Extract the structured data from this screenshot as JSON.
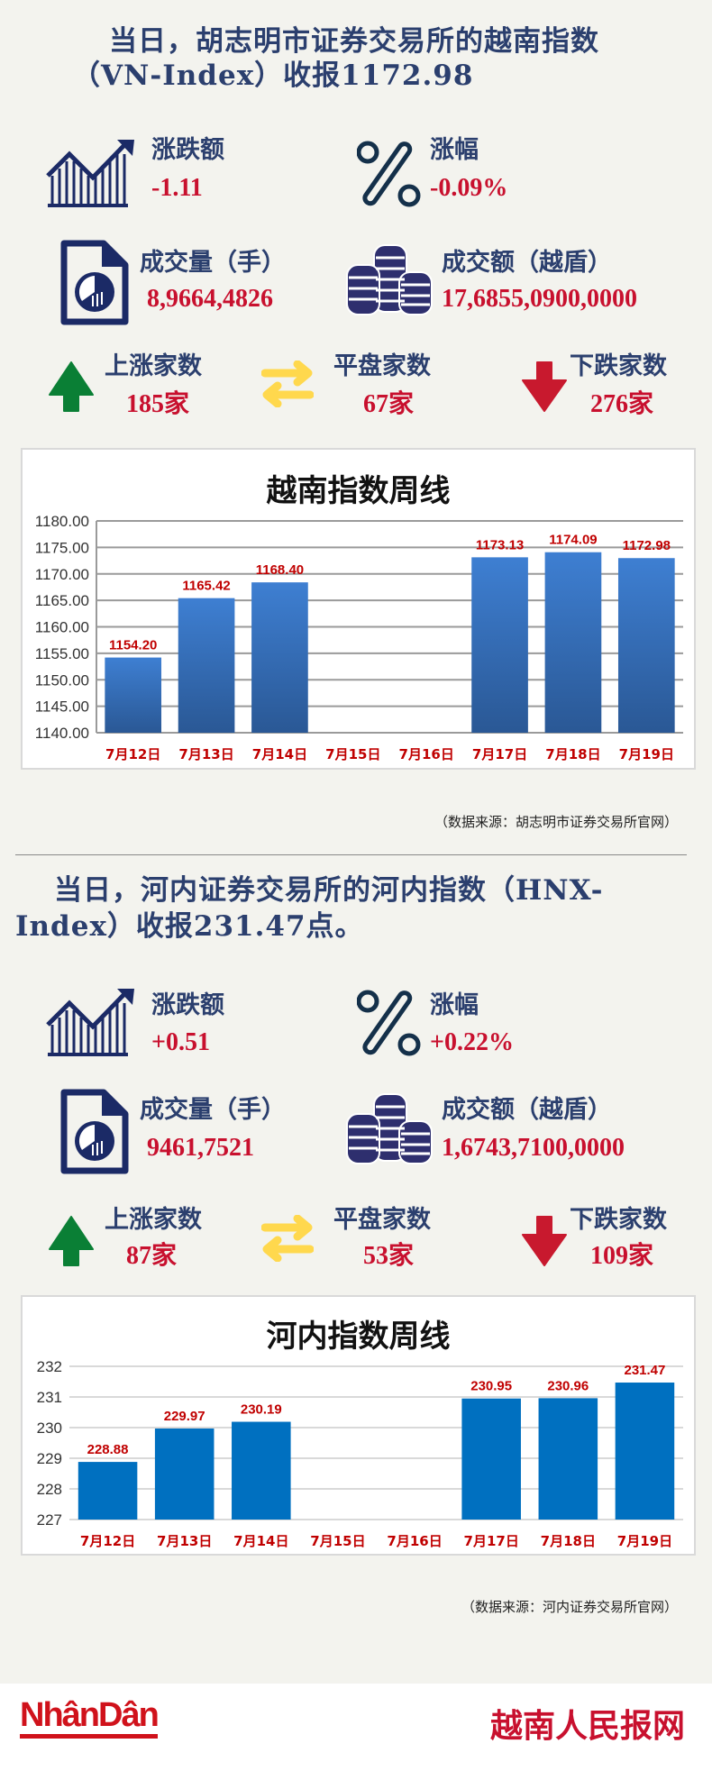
{
  "hose": {
    "title_line1": "当日，胡志明市证券交易所的越南指数",
    "title_line2": "（VN-Index）收报1172.98",
    "change_label": "涨跌额",
    "change_value": "-1.11",
    "pct_label": "涨幅",
    "pct_value": "-0.09%",
    "volume_label": "成交量（手）",
    "volume_value": "8,9664,4826",
    "turnover_label": "成交额（越盾）",
    "turnover_value": "17,6855,0900,0000",
    "up_label": "上涨家数",
    "up_value": "185家",
    "flat_label": "平盘家数",
    "flat_value": "67家",
    "down_label": "下跌家数",
    "down_value": "276家",
    "source": "（数据来源：胡志明市证券交易所官网）"
  },
  "hnx": {
    "title_line1": "当日，河内证券交易所的河内指数（HNX-",
    "title_line2": "Index）收报231.47点。",
    "change_label": "涨跌额",
    "change_value": "+0.51",
    "pct_label": "涨幅",
    "pct_value": "+0.22%",
    "volume_label": "成交量（手）",
    "volume_value": "9461,7521",
    "turnover_label": "成交额（越盾）",
    "turnover_value": "1,6743,7100,0000",
    "up_label": "上涨家数",
    "up_value": "87家",
    "flat_label": "平盘家数",
    "flat_value": "53家",
    "down_label": "下跌家数",
    "down_value": "109家",
    "source": "（数据来源：河内证券交易所官网）"
  },
  "colors": {
    "navy": "#2b3f6e",
    "red": "#c8102e",
    "up": "#0a7f35",
    "flat": "#ffd84d",
    "down": "#c8192e"
  },
  "footer": {
    "logo_left": "NhânDân",
    "logo_right": "越南人民报网"
  },
  "chart_data": [
    {
      "type": "bar",
      "title": "越南指数周线",
      "categories": [
        "7月12日",
        "7月13日",
        "7月14日",
        "7月15日",
        "7月16日",
        "7月17日",
        "7月18日",
        "7月19日"
      ],
      "values": [
        1154.2,
        1165.42,
        1168.4,
        null,
        null,
        1173.13,
        1174.09,
        1172.98
      ],
      "labels": [
        "1154.20",
        "1165.42",
        "1168.40",
        "",
        "",
        "1173.13",
        "1174.09",
        "1172.98"
      ],
      "ylim": [
        1140,
        1180
      ],
      "yticks": [
        "1140.00",
        "1145.00",
        "1150.00",
        "1155.00",
        "1160.00",
        "1165.00",
        "1170.00",
        "1175.00",
        "1180.00"
      ],
      "grid": true,
      "bar_color": "#3a78c9"
    },
    {
      "type": "bar",
      "title": "河内指数周线",
      "categories": [
        "7月12日",
        "7月13日",
        "7月14日",
        "7月15日",
        "7月16日",
        "7月17日",
        "7月18日",
        "7月19日"
      ],
      "values": [
        228.88,
        229.97,
        230.19,
        null,
        null,
        230.95,
        230.96,
        231.47
      ],
      "labels": [
        "228.88",
        "229.97",
        "230.19",
        "",
        "",
        "230.95",
        "230.96",
        "231.47"
      ],
      "ylim": [
        227,
        232
      ],
      "yticks": [
        "227",
        "228",
        "229",
        "230",
        "231",
        "232"
      ],
      "grid": true,
      "bar_color": "#0070c0"
    }
  ]
}
